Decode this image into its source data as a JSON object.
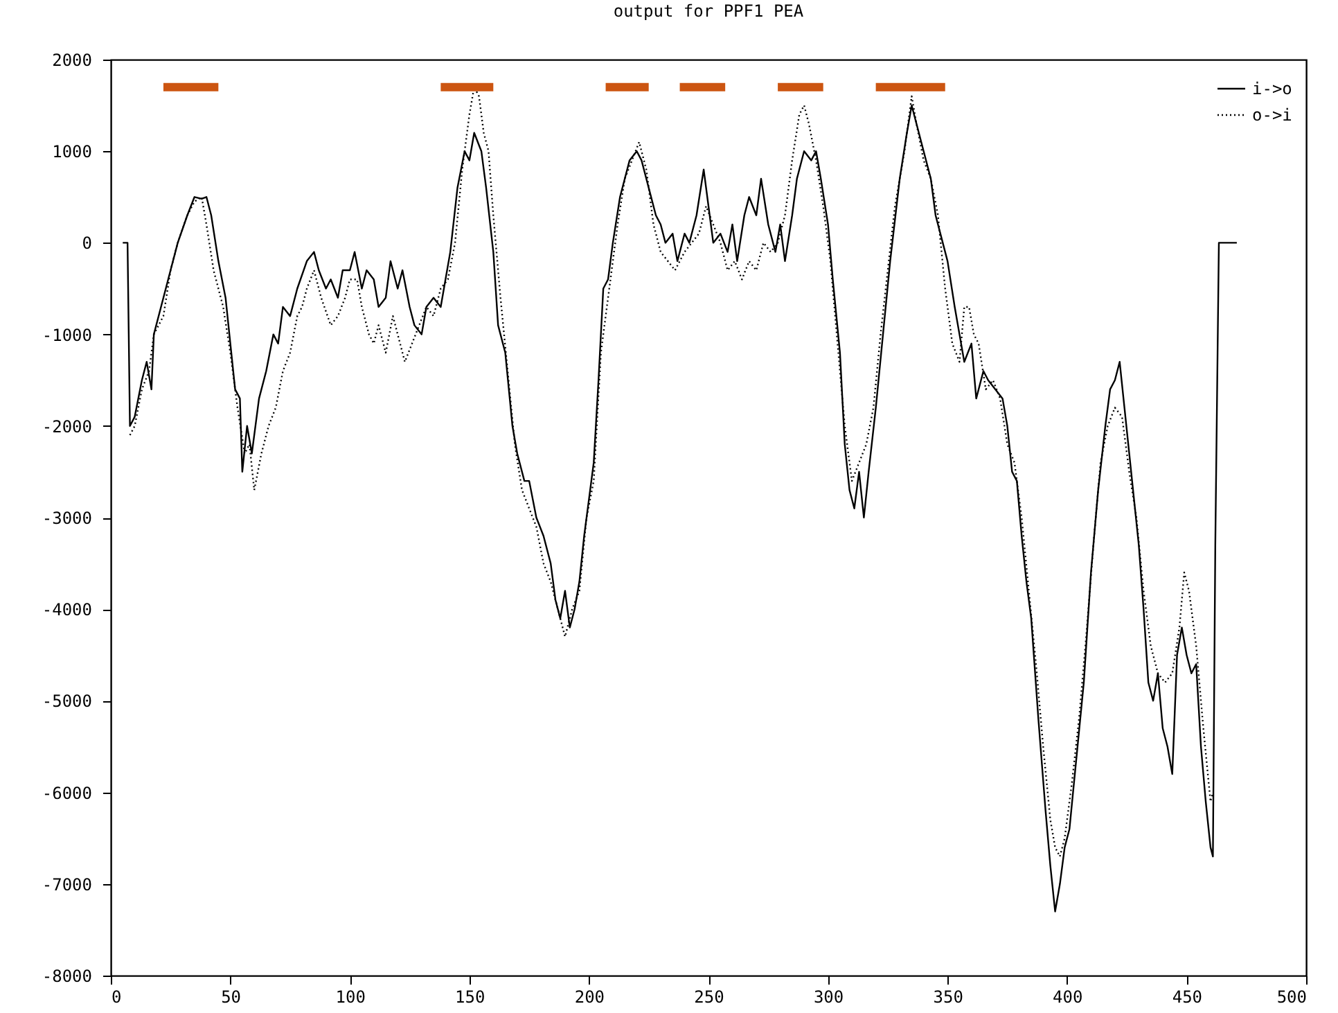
{
  "chart_data": {
    "type": "line",
    "title": "output for PPF1 PEA",
    "xlim": [
      0,
      500
    ],
    "xticks": [
      0,
      50,
      100,
      150,
      200,
      250,
      300,
      350,
      400,
      450,
      500
    ],
    "ylim": [
      -8000,
      2000
    ],
    "yticks": [
      -8000,
      -7000,
      -6000,
      -5000,
      -4000,
      -3000,
      -2000,
      -1000,
      0,
      1000,
      2000
    ],
    "grid": false,
    "legend": "top right",
    "marker": "none",
    "series": [
      {
        "name": "i->o",
        "color": "#000000",
        "line_style": "solid",
        "x": [
          5,
          7,
          7.5,
          8,
          10,
          13,
          15,
          17,
          18,
          22,
          25,
          28,
          32,
          35,
          38,
          40,
          42,
          45,
          48,
          50,
          52,
          54,
          55,
          57,
          59,
          62,
          65,
          68,
          70,
          72,
          75,
          78,
          82,
          85,
          87,
          90,
          92,
          95,
          97,
          100,
          102,
          105,
          107,
          110,
          112,
          115,
          117,
          120,
          122,
          125,
          127,
          130,
          132,
          135,
          138,
          140,
          142,
          145,
          148,
          150,
          152,
          155,
          157,
          160,
          162,
          165,
          168,
          170,
          173,
          175,
          178,
          181,
          184,
          186,
          188,
          190,
          192,
          194,
          196,
          198,
          200,
          202,
          204,
          206,
          208,
          210,
          213,
          217,
          220,
          222,
          225,
          228,
          230,
          232,
          235,
          237,
          240,
          242,
          245,
          248,
          250,
          252,
          255,
          258,
          260,
          262,
          265,
          267,
          270,
          272,
          275,
          278,
          280,
          282,
          285,
          287,
          290,
          293,
          295,
          297,
          300,
          302,
          305,
          307,
          309,
          311,
          313,
          315,
          317,
          320,
          323,
          326,
          330,
          333,
          335,
          337,
          340,
          343,
          345,
          348,
          350,
          353,
          355,
          357,
          360,
          362,
          365,
          367,
          370,
          373,
          375,
          377,
          379,
          381,
          383,
          385,
          388,
          391,
          393,
          395,
          397,
          399,
          401,
          404,
          407,
          410,
          413,
          416,
          418,
          420,
          422,
          424,
          426,
          428,
          430,
          432,
          434,
          436,
          438,
          440,
          442,
          444,
          446,
          448,
          450,
          452,
          454,
          456,
          458,
          460,
          461,
          462,
          463.5,
          471
        ],
        "values": [
          0,
          0,
          -1000,
          -2000,
          -1900,
          -1500,
          -1300,
          -1600,
          -1000,
          -600,
          -300,
          0,
          300,
          500,
          480,
          500,
          300,
          -200,
          -600,
          -1100,
          -1600,
          -1700,
          -2500,
          -2000,
          -2300,
          -1700,
          -1400,
          -1000,
          -1100,
          -700,
          -800,
          -500,
          -200,
          -100,
          -300,
          -500,
          -400,
          -600,
          -300,
          -300,
          -100,
          -500,
          -300,
          -400,
          -700,
          -600,
          -200,
          -500,
          -300,
          -700,
          -900,
          -1000,
          -700,
          -600,
          -700,
          -400,
          -100,
          600,
          1000,
          900,
          1200,
          1000,
          600,
          -100,
          -900,
          -1200,
          -2000,
          -2300,
          -2600,
          -2600,
          -3000,
          -3200,
          -3500,
          -3900,
          -4100,
          -3800,
          -4200,
          -4000,
          -3700,
          -3200,
          -2800,
          -2400,
          -1500,
          -500,
          -400,
          0,
          500,
          900,
          1000,
          900,
          600,
          300,
          200,
          0,
          100,
          -200,
          100,
          0,
          300,
          800,
          400,
          0,
          100,
          -100,
          200,
          -200,
          300,
          500,
          300,
          700,
          200,
          -100,
          200,
          -200,
          300,
          700,
          1000,
          900,
          1000,
          700,
          200,
          -400,
          -1200,
          -2200,
          -2700,
          -2900,
          -2500,
          -3000,
          -2500,
          -1800,
          -1000,
          -200,
          700,
          1200,
          1500,
          1300,
          1000,
          700,
          300,
          0,
          -200,
          -700,
          -1000,
          -1300,
          -1100,
          -1700,
          -1400,
          -1500,
          -1600,
          -1700,
          -2000,
          -2500,
          -2600,
          -3200,
          -3700,
          -4100,
          -5200,
          -6200,
          -6800,
          -7300,
          -7000,
          -6600,
          -6400,
          -5600,
          -4800,
          -3600,
          -2700,
          -2000,
          -1600,
          -1500,
          -1300,
          -1800,
          -2300,
          -2800,
          -3300,
          -4000,
          -4800,
          -5000,
          -4700,
          -5300,
          -5500,
          -5800,
          -4500,
          -4200,
          -4500,
          -4700,
          -4600,
          -5500,
          -6100,
          -6600,
          -6700,
          -3300,
          0,
          0
        ]
      },
      {
        "name": "o->i",
        "color": "#000000",
        "line_style": "dotted",
        "x": [
          8,
          10,
          13,
          16,
          18,
          22,
          25,
          28,
          32,
          35,
          38,
          40,
          43,
          47,
          50,
          53,
          56,
          58,
          60,
          63,
          66,
          69,
          72,
          75,
          78,
          80,
          82,
          85,
          88,
          92,
          95,
          98,
          100,
          103,
          105,
          108,
          110,
          112,
          115,
          118,
          120,
          123,
          126,
          129,
          132,
          135,
          138,
          141,
          144,
          147,
          150,
          152,
          154,
          156,
          158,
          160,
          163,
          166,
          169,
          172,
          175,
          178,
          181,
          184,
          187,
          190,
          193,
          196,
          199,
          202,
          205,
          208,
          212,
          215,
          218,
          221,
          224,
          227,
          230,
          233,
          236,
          240,
          243,
          246,
          249,
          252,
          255,
          258,
          261,
          264,
          267,
          270,
          273,
          276,
          279,
          282,
          285,
          288,
          290,
          292,
          295,
          298,
          301,
          304,
          307,
          310,
          313,
          316,
          319,
          322,
          325,
          328,
          332,
          335,
          337,
          340,
          343,
          346,
          349,
          352,
          355,
          357,
          359,
          361,
          363,
          366,
          369,
          372,
          375,
          378,
          381,
          384,
          387,
          390,
          393,
          395,
          397,
          399,
          402,
          405,
          408,
          411,
          414,
          417,
          420,
          423,
          426,
          429,
          432,
          435,
          438,
          441,
          444,
          447,
          449,
          451,
          454,
          457,
          460,
          461
        ],
        "values": [
          -2100,
          -2000,
          -1600,
          -1400,
          -1000,
          -800,
          -300,
          0,
          300,
          450,
          500,
          200,
          -300,
          -700,
          -1200,
          -1800,
          -2300,
          -2200,
          -2700,
          -2300,
          -2000,
          -1800,
          -1400,
          -1200,
          -800,
          -700,
          -500,
          -300,
          -600,
          -900,
          -800,
          -600,
          -400,
          -400,
          -700,
          -1000,
          -1100,
          -900,
          -1200,
          -800,
          -1000,
          -1300,
          -1100,
          -900,
          -700,
          -800,
          -500,
          -400,
          0,
          800,
          1400,
          1700,
          1600,
          1200,
          1000,
          300,
          -600,
          -1400,
          -2200,
          -2700,
          -2900,
          -3100,
          -3500,
          -3700,
          -4000,
          -4300,
          -4000,
          -3800,
          -3000,
          -2600,
          -1200,
          -600,
          200,
          700,
          900,
          1100,
          800,
          200,
          -100,
          -200,
          -300,
          -100,
          0,
          100,
          400,
          200,
          0,
          -300,
          -200,
          -400,
          -200,
          -300,
          0,
          -100,
          0,
          300,
          900,
          1400,
          1500,
          1300,
          900,
          400,
          -200,
          -1100,
          -2000,
          -2600,
          -2400,
          -2200,
          -1800,
          -1000,
          -300,
          400,
          1000,
          1600,
          1300,
          900,
          700,
          300,
          -500,
          -1100,
          -1300,
          -700,
          -700,
          -1000,
          -1100,
          -1600,
          -1500,
          -1700,
          -2200,
          -2400,
          -3000,
          -3800,
          -4600,
          -5500,
          -6300,
          -6600,
          -6700,
          -6500,
          -5900,
          -5200,
          -4300,
          -3300,
          -2400,
          -2000,
          -1800,
          -1900,
          -2500,
          -3000,
          -3800,
          -4400,
          -4700,
          -4800,
          -4700,
          -4200,
          -3600,
          -3800,
          -4400,
          -5300,
          -6100,
          -6000
        ]
      },
      {
        "color": "#cc5511",
        "line_style": "solid",
        "x": [
          22,
          45,
          46,
          138,
          160,
          161,
          207,
          225,
          226,
          238,
          257,
          258,
          279,
          298,
          299,
          320,
          349
        ],
        "values": [
          1700,
          1700,
          null,
          1700,
          1700,
          null,
          1700,
          1700,
          null,
          1700,
          1700,
          null,
          1700,
          1700,
          null,
          1700,
          1700
        ]
      }
    ]
  }
}
